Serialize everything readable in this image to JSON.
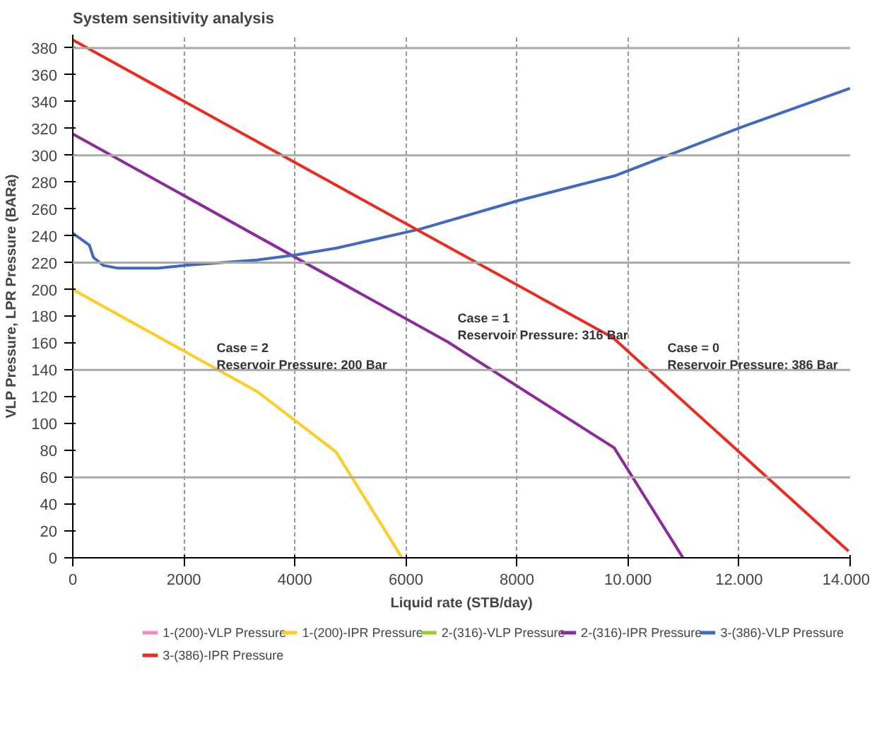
{
  "chart_data": {
    "type": "line",
    "title": "System sensitivity analysis",
    "xlabel": "Liquid rate (STB/day)",
    "ylabel": "VLP Pressure, LPR Pressure (BARa)",
    "xlim": [
      0,
      14000
    ],
    "ylim": [
      0,
      390
    ],
    "xticks": [
      0,
      2000,
      4000,
      6000,
      8000,
      {
        "value": 10000,
        "label": "10.000"
      },
      {
        "value": 12000,
        "label": "12.000"
      },
      {
        "value": 14000,
        "label": "14.000"
      }
    ],
    "yticks": [
      0,
      20,
      40,
      60,
      80,
      100,
      120,
      140,
      160,
      180,
      200,
      220,
      240,
      260,
      280,
      300,
      320,
      340,
      360,
      380
    ],
    "grid": "x",
    "legend": "bottom",
    "line_style": "solid",
    "ref_lines": [
      {
        "axis": "y",
        "value": 60,
        "color": "#aaaaaa"
      },
      {
        "axis": "y",
        "value": 140,
        "color": "#aaaaaa"
      },
      {
        "axis": "y",
        "value": 220,
        "color": "#aaaaaa"
      },
      {
        "axis": "y",
        "value": 300,
        "color": "#aaaaaa"
      },
      {
        "axis": "y",
        "value": 380,
        "color": "#aaaaaa"
      }
    ],
    "annotations": [
      "Case = 2\nReservoir Pressure: 200 Bar",
      "Case = 1\nReservoir Pressure: 316 Bar",
      "Case = 0\nReservoir Pressure: 386 Bar"
    ],
    "series": [
      {
        "name": "1-(200)-VLP Pressure",
        "color": "#f08cc0"
      },
      {
        "name": "1-(200)-IPR Pressure",
        "color": "#ffcc22",
        "x": [
          0,
          3320,
          4740,
          5930
        ],
        "values": [
          200,
          124,
          79,
          0
        ]
      },
      {
        "name": "2-(316)-VLP Pressure",
        "color": "#99cc33"
      },
      {
        "name": "2-(316)-IPR Pressure",
        "color": "#8b2a9b",
        "x": [
          0,
          6750,
          9750,
          10990
        ],
        "values": [
          316,
          161,
          82,
          0
        ]
      },
      {
        "name": "3-(386)-VLP Pressure",
        "color": "#4169c0",
        "x": [
          0,
          300,
          370,
          550,
          800,
          1540,
          2030,
          3320,
          4040,
          4760,
          6250,
          8000,
          9780,
          12040,
          14000
        ],
        "values": [
          242,
          233,
          224,
          218,
          216,
          216,
          218,
          222,
          226,
          231,
          245,
          266,
          285,
          321,
          350
        ]
      },
      {
        "name": "3-(386)-IPR Pressure",
        "color": "#ee2a1e",
        "x": [
          0,
          9730,
          13970
        ],
        "values": [
          386,
          164,
          5
        ]
      }
    ]
  }
}
